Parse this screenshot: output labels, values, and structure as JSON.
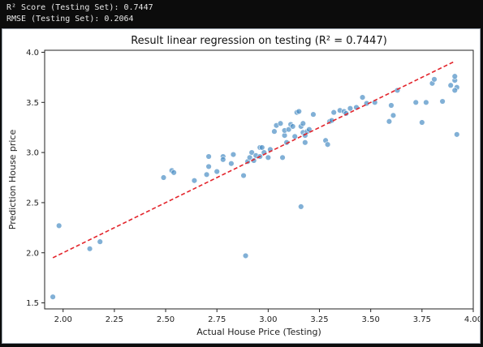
{
  "console": {
    "line1": "R² Score (Testing Set): 0.7447",
    "line2": "RMSE (Testing Set): 0.2064"
  },
  "colors": {
    "point": "#4c8fc4",
    "point_edge": "#ffffff",
    "fit_line": "#e3242b",
    "console_bg": "#0c0c0c"
  },
  "chart_data": {
    "type": "scatter",
    "title": "Result linear regression on testing (R² = 0.7447)",
    "xlabel": "Actual House Price (Testing)",
    "ylabel": "Prediction House price",
    "xlim": [
      1.91,
      4.0
    ],
    "ylim": [
      1.44,
      4.02
    ],
    "xticks": [
      2.0,
      2.25,
      2.5,
      2.75,
      3.0,
      3.25,
      3.5,
      3.75,
      4.0
    ],
    "yticks": [
      1.5,
      2.0,
      2.5,
      3.0,
      3.5,
      4.0
    ],
    "grid": false,
    "legend": "none",
    "fit_line": {
      "style": "dashed",
      "x": [
        1.95,
        3.91
      ],
      "y": [
        1.95,
        3.91
      ]
    },
    "series": [
      {
        "x": [
          1.95,
          1.98,
          2.13,
          2.18,
          2.49,
          2.53,
          2.54,
          2.64,
          2.7,
          2.71,
          2.71,
          2.75,
          2.78,
          2.78,
          2.82,
          2.83,
          2.88,
          2.89,
          2.9,
          2.91,
          2.92,
          2.93,
          2.94,
          2.96,
          2.96,
          2.97,
          2.98,
          3.0,
          3.01,
          3.03,
          3.04,
          3.06,
          3.07,
          3.08,
          3.08,
          3.09,
          3.1,
          3.11,
          3.12,
          3.13,
          3.14,
          3.15,
          3.16,
          3.17,
          3.17,
          3.18,
          3.18,
          3.19,
          3.2,
          3.22,
          3.28,
          3.29,
          3.3,
          3.31,
          3.32,
          3.35,
          3.37,
          3.38,
          3.4,
          3.43,
          3.46,
          3.48,
          3.52,
          3.59,
          3.6,
          3.61,
          3.63,
          3.72,
          3.75,
          3.77,
          3.8,
          3.81,
          3.85,
          3.89,
          3.91,
          3.91,
          3.92,
          3.91,
          3.92,
          3.16
        ],
        "y": [
          1.56,
          2.27,
          2.04,
          2.11,
          2.75,
          2.82,
          2.8,
          2.72,
          2.78,
          2.86,
          2.96,
          2.81,
          2.96,
          2.93,
          2.89,
          2.98,
          2.77,
          1.97,
          2.91,
          2.95,
          3.0,
          2.92,
          2.97,
          2.96,
          3.05,
          3.05,
          3.0,
          2.95,
          3.03,
          3.21,
          3.27,
          3.29,
          2.95,
          3.17,
          3.22,
          3.1,
          3.23,
          3.28,
          3.26,
          3.16,
          3.4,
          3.41,
          3.26,
          3.29,
          3.2,
          3.1,
          3.17,
          3.21,
          3.23,
          3.38,
          3.12,
          3.08,
          3.31,
          3.32,
          3.4,
          3.42,
          3.41,
          3.39,
          3.44,
          3.45,
          3.55,
          3.49,
          3.5,
          3.31,
          3.47,
          3.37,
          3.62,
          3.5,
          3.3,
          3.5,
          3.69,
          3.73,
          3.51,
          3.67,
          3.72,
          3.76,
          3.65,
          3.62,
          3.18,
          2.46
        ]
      }
    ]
  }
}
